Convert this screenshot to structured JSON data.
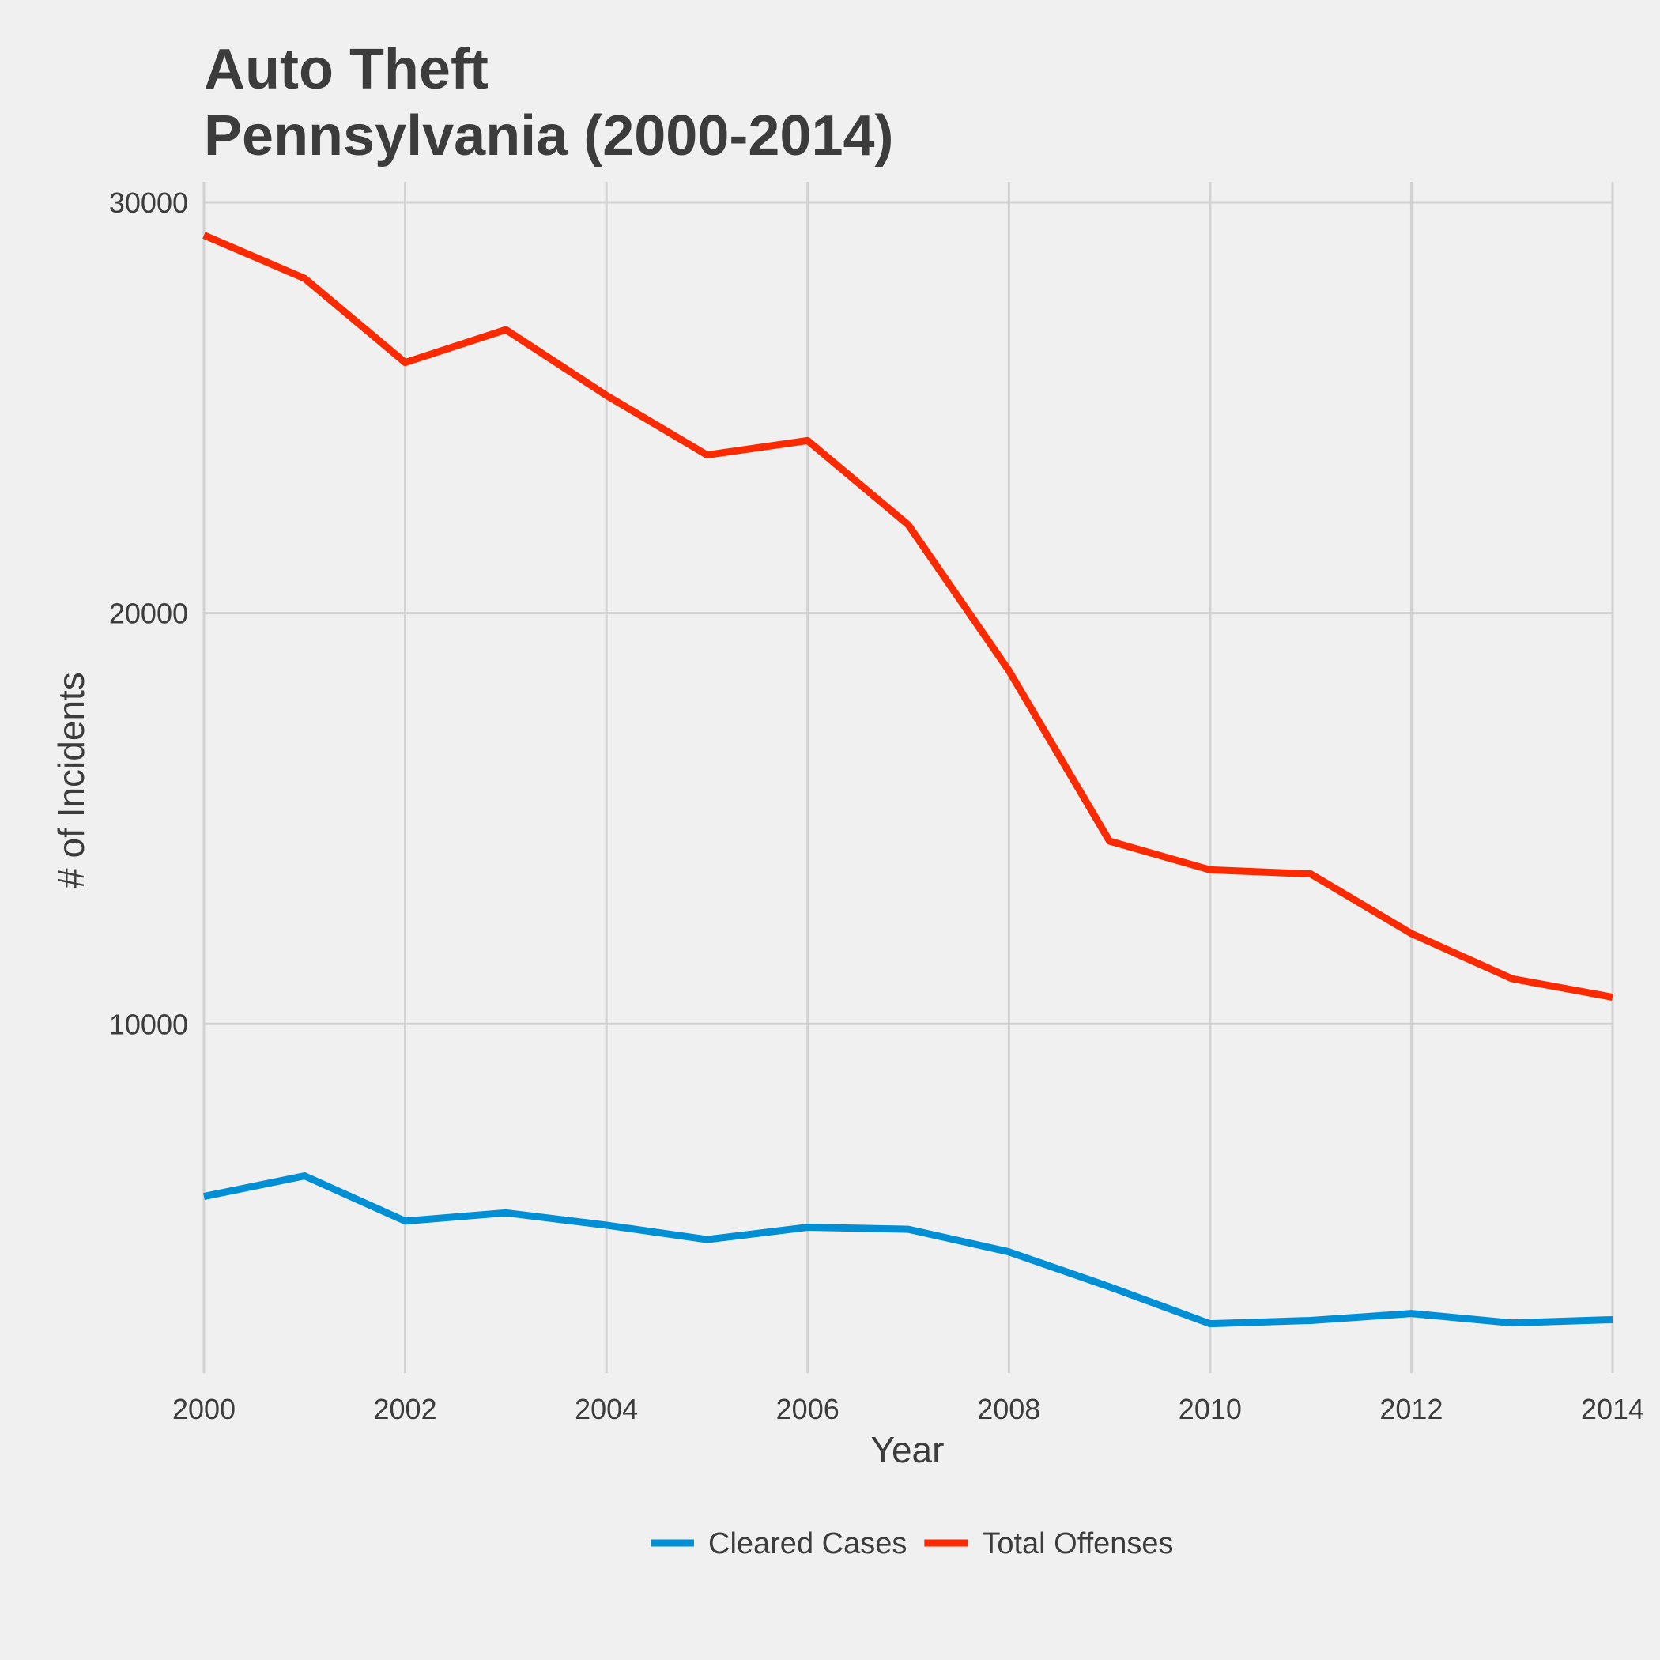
{
  "chart_data": {
    "type": "line",
    "title_lines": [
      "Auto Theft",
      "Pennsylvania (2000-2014)"
    ],
    "xlabel": "Year",
    "ylabel": "# of Incidents",
    "x": [
      2000,
      2001,
      2002,
      2003,
      2004,
      2005,
      2006,
      2007,
      2008,
      2009,
      2010,
      2011,
      2012,
      2013,
      2014
    ],
    "xlim": [
      2000,
      2014
    ],
    "ylim": [
      1500,
      30500
    ],
    "x_ticks": [
      2000,
      2002,
      2004,
      2006,
      2008,
      2010,
      2012,
      2014
    ],
    "y_ticks": [
      10000,
      20000,
      30000
    ],
    "grid": true,
    "legend_position": "bottom",
    "series": [
      {
        "name": "Cleared Cases",
        "color": "#008fd5",
        "values": [
          5800,
          6300,
          5200,
          5400,
          5100,
          4750,
          5050,
          5000,
          4450,
          3600,
          2700,
          2780,
          2950,
          2720,
          2800
        ]
      },
      {
        "name": "Total Offenses",
        "color": "#fc2a00",
        "values": [
          29200,
          28150,
          26100,
          26900,
          25300,
          23850,
          24200,
          22150,
          18600,
          14450,
          13750,
          13650,
          12200,
          11100,
          10650
        ]
      }
    ]
  }
}
